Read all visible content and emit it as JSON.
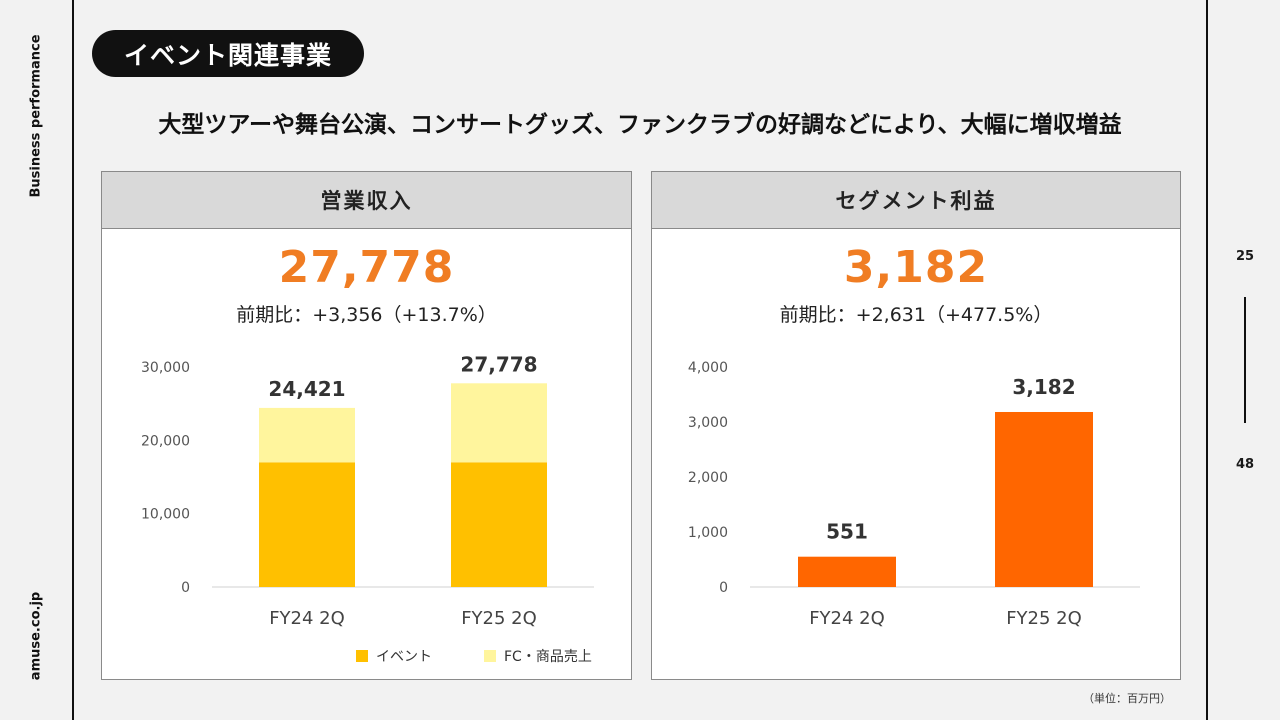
{
  "side": {
    "top_label": "Business performance",
    "bottom_label": "amuse.co.jp"
  },
  "section_title": "イベント関連事業",
  "headline": "大型ツアーや舞台公演、コンサートグッズ、ファンクラブの好調などにより、大幅に増収増益",
  "pagination": {
    "current": "25",
    "total": "48"
  },
  "unit_note": "（単位：百万円）",
  "colors": {
    "event": "#ffc000",
    "fc_goods": "#fff59d",
    "segment": "#ff6600",
    "highlight": "#f07d23"
  },
  "revenue_panel": {
    "title": "営業収入",
    "value": "27,778",
    "yoy": "前期比：+3,356（+13.7%）"
  },
  "profit_panel": {
    "title": "セグメント利益",
    "value": "3,182",
    "yoy": "前期比：+2,631（+477.5%）"
  },
  "chart_data": [
    {
      "type": "bar",
      "stacked": true,
      "title": "営業収入",
      "categories": [
        "FY24 2Q",
        "FY25 2Q"
      ],
      "series": [
        {
          "name": "イベント",
          "values": [
            17000,
            17000
          ]
        },
        {
          "name": "FC・商品売上",
          "values": [
            7421,
            10778
          ]
        }
      ],
      "totals": [
        24421,
        27778
      ],
      "total_labels": [
        "24,421",
        "27,778"
      ],
      "ylim": [
        0,
        30000
      ],
      "yticks": [
        0,
        10000,
        20000,
        30000
      ],
      "ytick_labels": [
        "0",
        "10,000",
        "20,000",
        "30,000"
      ],
      "legend": [
        "イベント",
        "FC・商品売上"
      ],
      "legend_position": "bottom-right"
    },
    {
      "type": "bar",
      "title": "セグメント利益",
      "categories": [
        "FY24 2Q",
        "FY25 2Q"
      ],
      "values": [
        551,
        3182
      ],
      "value_labels": [
        "551",
        "3,182"
      ],
      "ylim": [
        0,
        4000
      ],
      "yticks": [
        0,
        1000,
        2000,
        3000,
        4000
      ],
      "ytick_labels": [
        "0",
        "1,000",
        "2,000",
        "3,000",
        "4,000"
      ]
    }
  ]
}
